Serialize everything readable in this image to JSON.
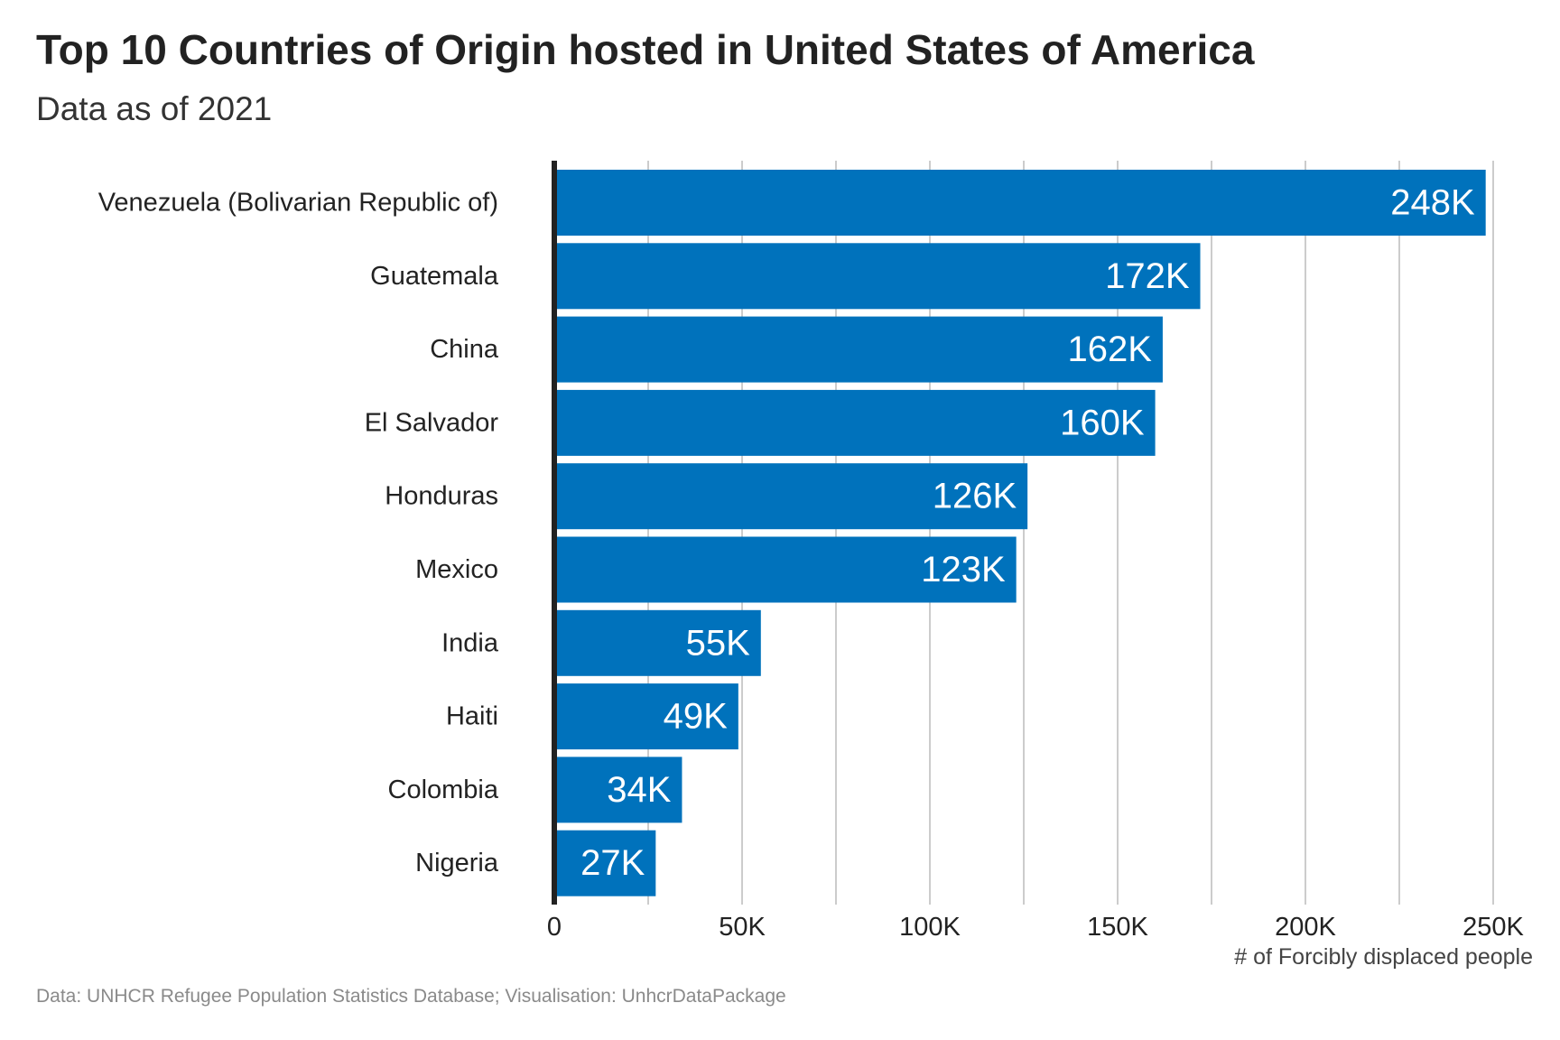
{
  "header": {
    "title": "Top 10 Countries of Origin hosted in United States of America",
    "subtitle": "Data as of 2021"
  },
  "footer": {
    "caption": "Data: UNHCR Refugee Population Statistics Database; Visualisation: UnhcrDataPackage"
  },
  "colors": {
    "bar": "#0072bc",
    "gridline": "#cccccc",
    "axis_line": "#222222",
    "value_label": "#ffffff"
  },
  "chart_data": {
    "type": "bar",
    "orientation": "horizontal",
    "title": "Top 10 Countries of Origin hosted in United States of America",
    "subtitle": "Data as of 2021",
    "xlabel": "# of Forcibly displaced people",
    "ylabel": "",
    "categories": [
      "Venezuela (Bolivarian Republic of)",
      "Guatemala",
      "China",
      "El Salvador",
      "Honduras",
      "Mexico",
      "India",
      "Haiti",
      "Colombia",
      "Nigeria"
    ],
    "values": [
      248000,
      172000,
      162000,
      160000,
      126000,
      123000,
      55000,
      49000,
      34000,
      27000
    ],
    "value_labels": [
      "248K",
      "172K",
      "162K",
      "160K",
      "126K",
      "123K",
      "55K",
      "49K",
      "34K",
      "27K"
    ],
    "xlim": [
      0,
      250000
    ],
    "x_ticks": [
      0,
      50000,
      100000,
      150000,
      200000,
      250000
    ],
    "x_tick_labels": [
      "0",
      "50K",
      "100K",
      "150K",
      "200K",
      "250K"
    ],
    "grid": true,
    "legend": "none"
  }
}
